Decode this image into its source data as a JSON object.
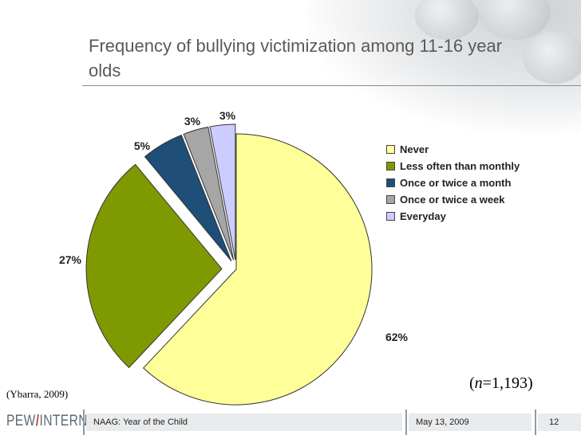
{
  "slide": {
    "title": "Frequency of bullying victimization among 11-16 year olds",
    "citation": "(Ybarra, 2009)",
    "n_note_prefix": "(",
    "n_note_var": "n",
    "n_note_rest": "=1,193)"
  },
  "footer": {
    "logo_left": "PEW",
    "logo_slash": "/",
    "logo_right": "INTERNET",
    "event": "NAAG: Year of the Child",
    "date": "May 13, 2009",
    "page": "12"
  },
  "chart_data": {
    "type": "pie",
    "title": "Frequency of bullying victimization among 11-16 year olds",
    "legend_position": "right",
    "slices": [
      {
        "label": "Never",
        "value": 62,
        "display": "62%",
        "color": "#ffff99"
      },
      {
        "label": "Less often than monthly",
        "value": 27,
        "display": "27%",
        "color": "#7f9a00"
      },
      {
        "label": "Once or twice a month",
        "value": 5,
        "display": "5%",
        "color": "#1f4e79"
      },
      {
        "label": "Once or twice a week",
        "value": 3,
        "display": "3%",
        "color": "#a6a6a6"
      },
      {
        "label": "Everyday",
        "value": 3,
        "display": "3%",
        "color": "#ccccff"
      }
    ]
  }
}
